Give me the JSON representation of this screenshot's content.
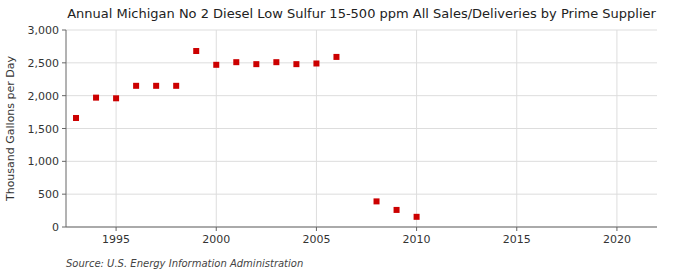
{
  "chart_data": {
    "type": "scatter",
    "title": "Annual Michigan No 2 Diesel Low Sulfur 15-500 ppm All Sales/Deliveries by Prime Supplier",
    "ylabel": "Thousand Gallons per Day",
    "source": "Source: U.S. Energy Information Administration",
    "x": [
      1993,
      1994,
      1995,
      1996,
      1997,
      1998,
      1999,
      2000,
      2001,
      2002,
      2003,
      2004,
      2005,
      2006,
      2008,
      2009,
      2010
    ],
    "values": [
      1660,
      1970,
      1960,
      2150,
      2150,
      2150,
      2680,
      2470,
      2510,
      2480,
      2510,
      2480,
      2490,
      2590,
      390,
      260,
      155
    ],
    "color": "#cc0000",
    "marker": "square",
    "xlim": [
      1992.5,
      2022
    ],
    "ylim": [
      0,
      3000
    ],
    "xticks": [
      1995,
      2000,
      2005,
      2010,
      2015,
      2020
    ],
    "yticks": [
      0,
      500,
      {
        "value": 1000,
        "label": "1,000"
      },
      {
        "value": 1500,
        "label": "1,500"
      },
      {
        "value": 2000,
        "label": "2,000"
      },
      {
        "value": 2500,
        "label": "2,500"
      },
      {
        "value": 3000,
        "label": "3,000"
      }
    ],
    "grid": true
  }
}
